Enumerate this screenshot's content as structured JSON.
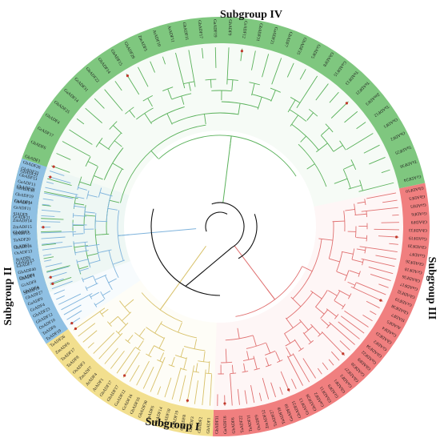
{
  "figure": {
    "subgroups": [
      {
        "id": "IV",
        "label": "Subgroup IV",
        "fill": "#7fc77f",
        "line": "#59b15a",
        "leaves": [
          "SlADF10",
          "OsADF4",
          "GbADF13",
          "GaADF24",
          "GhADF3",
          "GrADF11",
          "GbADF5",
          "GbADF20",
          "GhADF21",
          "GbADF1",
          "GhADF6",
          "GrADF17",
          "GhADF4",
          "GbADF25",
          "GaADF14",
          "GrADF31",
          "GbADF22",
          "GbADF14",
          "GbADF15",
          "GhADF29",
          "ZmADF5",
          "AtADF10",
          "AtADF11",
          "GhADF11",
          "GbADF17",
          "GaADF19",
          "GhADF9",
          "GrADF12",
          "GbADF31",
          "GaADF21",
          "GbADF7",
          "GhADF35",
          "GrADF5",
          "GbADF8",
          "GaADF15",
          "TaADF13",
          "TaADF21",
          "ZmADF3",
          "TaADF12",
          "OsADF1",
          "OsADF2",
          "TaADF25",
          "TaADF30",
          "GrADF24"
        ]
      },
      {
        "id": "III",
        "label": "Subgroup III",
        "fill": "#f07f7f",
        "line": "#e07070",
        "leaves": [
          "GhADF10",
          "GbADF3",
          "GaADF5",
          "GrADF6",
          "GbADF9",
          "GhADF33",
          "GaADF19",
          "GhADF20",
          "GaADF7",
          "GbADF26",
          "GrADF18",
          "GhADF36",
          "GaADF17",
          "GbADF32",
          "GrADF19",
          "GbADF38",
          "SlADF7",
          "AtADF5",
          "GaADF4",
          "GhADF23",
          "GrADF2",
          "GbADF34",
          "GaADF22",
          "GhADF8",
          "GrADF20",
          "GbADF27",
          "GaADF3",
          "GhADF1",
          "GrADF9",
          "GbADF11",
          "GaADF2",
          "GhADF28",
          "GrADF13",
          "GbADF21",
          "GaADF10",
          "TaADF18",
          "TaADF27",
          "ZmADF12",
          "OsADF9",
          "TaADF11",
          "TaADF22",
          "GbADF6",
          "GaADF16",
          "GhADF31"
        ]
      },
      {
        "id": "I",
        "label": "Subgroup I",
        "fill": "#f2df8e",
        "line": "#d8c169",
        "leaves": [
          "GhADF1",
          "GbADF2",
          "GrADF3",
          "GaADF8",
          "GhADF19",
          "GbADF10",
          "GrADF14",
          "GaADF6",
          "GhADF30",
          "GbADF16",
          "GrADF16",
          "GaADF12",
          "GhADF17",
          "GbADF17",
          "AtADF1",
          "AtADF4",
          "ZmADF7",
          "OsADF3",
          "TaADF8",
          "TaADF17",
          "ZmADF6",
          "TaADF26"
        ]
      },
      {
        "id": "II",
        "label": "Subgroup II",
        "fill": "#8fc0e3",
        "line": "#7eb3dc",
        "leaves": [
          "TaADF19",
          "TaADF6",
          "OsADF10",
          "GhADF12",
          "GbADF23",
          "GrADF4",
          "GaADF9",
          "GhADF27",
          "GbADF4",
          "GrADF8",
          "GaADF1",
          "GhADF40",
          "GbADF7",
          "AtADF6",
          "OsADF13",
          "OsADF2",
          "TaADF20",
          "TaADF15",
          "ZmADF15",
          "ZmADF14",
          "SlADF9",
          "GrADF11",
          "GaADF14",
          "GbADF19",
          "GbADF30",
          "GaADF13",
          "GbADF13",
          "GbADF33",
          "GbADF26"
        ]
      }
    ]
  }
}
